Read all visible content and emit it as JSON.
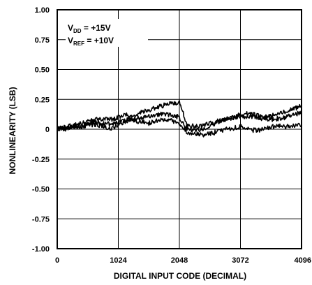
{
  "chart_data": {
    "type": "line",
    "xlabel": "DIGITAL INPUT CODE (DECIMAL)",
    "ylabel": "NONLINEARITY (LSB)",
    "xlim": [
      0,
      4096
    ],
    "ylim": [
      -1.0,
      1.0
    ],
    "xticks": [
      {
        "value": 0,
        "label": "0"
      },
      {
        "value": 1024,
        "label": "1024"
      },
      {
        "value": 2048,
        "label": "2048"
      },
      {
        "value": 3072,
        "label": "3072"
      },
      {
        "value": 4096,
        "label": "4096"
      }
    ],
    "yticks": [
      {
        "value": 1.0,
        "label": "1.00"
      },
      {
        "value": 0.75,
        "label": "0.75"
      },
      {
        "value": 0.5,
        "label": "0.50"
      },
      {
        "value": 0.25,
        "label": "0.25"
      },
      {
        "value": 0,
        "label": "0"
      },
      {
        "value": -0.25,
        "label": "-0.25"
      },
      {
        "value": -0.5,
        "label": "-0.50"
      },
      {
        "value": -0.75,
        "label": "-0.75"
      },
      {
        "value": -1.0,
        "label": "-1.00"
      }
    ],
    "grid": true,
    "annotation": {
      "line1_main": "V",
      "line1_sub": "DD",
      "line1_rest": " = +15V",
      "line2_main": "V",
      "line2_sub": "REF",
      "line2_rest": " = +10V"
    },
    "series": [
      {
        "x": [
          0,
          128,
          256,
          384,
          512,
          640,
          768,
          896,
          1024,
          1152,
          1280,
          1408,
          1536,
          1664,
          1792,
          1920,
          2048,
          2176,
          2304,
          2432,
          2560,
          2688,
          2816,
          2944,
          3072,
          3200,
          3328,
          3456,
          3584,
          3712,
          3840,
          3968,
          4096
        ],
        "y": [
          0.0,
          0.02,
          0.03,
          0.05,
          0.06,
          0.08,
          0.09,
          0.08,
          0.1,
          0.12,
          0.11,
          0.14,
          0.16,
          0.18,
          0.2,
          0.22,
          0.22,
          0.04,
          0.02,
          0.03,
          0.05,
          0.07,
          0.08,
          0.1,
          0.12,
          0.13,
          0.12,
          0.1,
          0.11,
          0.13,
          0.15,
          0.17,
          0.2
        ]
      },
      {
        "x": [
          0,
          128,
          256,
          384,
          512,
          640,
          768,
          896,
          1024,
          1152,
          1280,
          1408,
          1536,
          1664,
          1792,
          1920,
          2048,
          2176,
          2304,
          2432,
          2560,
          2688,
          2816,
          2944,
          3072,
          3200,
          3328,
          3456,
          3584,
          3712,
          3840,
          3968,
          4096
        ],
        "y": [
          0.0,
          0.01,
          0.02,
          0.03,
          0.04,
          0.06,
          0.05,
          0.04,
          0.06,
          0.08,
          0.09,
          0.1,
          0.11,
          0.12,
          0.13,
          0.12,
          0.1,
          0.01,
          -0.01,
          0.0,
          0.03,
          0.06,
          0.08,
          0.1,
          0.1,
          0.11,
          0.1,
          0.09,
          0.08,
          0.09,
          0.1,
          0.12,
          0.14
        ]
      },
      {
        "x": [
          0,
          128,
          256,
          384,
          512,
          640,
          768,
          896,
          1024,
          1152,
          1280,
          1408,
          1536,
          1664,
          1792,
          1920,
          2048,
          2176,
          2304,
          2432,
          2560,
          2688,
          2816,
          2944,
          3072,
          3200,
          3328,
          3456,
          3584,
          3712,
          3840,
          3968,
          4096
        ],
        "y": [
          0.0,
          0.0,
          0.02,
          0.02,
          0.03,
          0.04,
          0.03,
          0.0,
          0.04,
          0.06,
          0.07,
          0.06,
          0.05,
          0.07,
          0.08,
          0.07,
          0.04,
          -0.02,
          -0.04,
          -0.05,
          -0.04,
          -0.02,
          0.0,
          0.01,
          0.02,
          0.0,
          -0.01,
          0.0,
          0.02,
          0.03,
          0.02,
          0.03,
          0.03
        ]
      }
    ]
  }
}
